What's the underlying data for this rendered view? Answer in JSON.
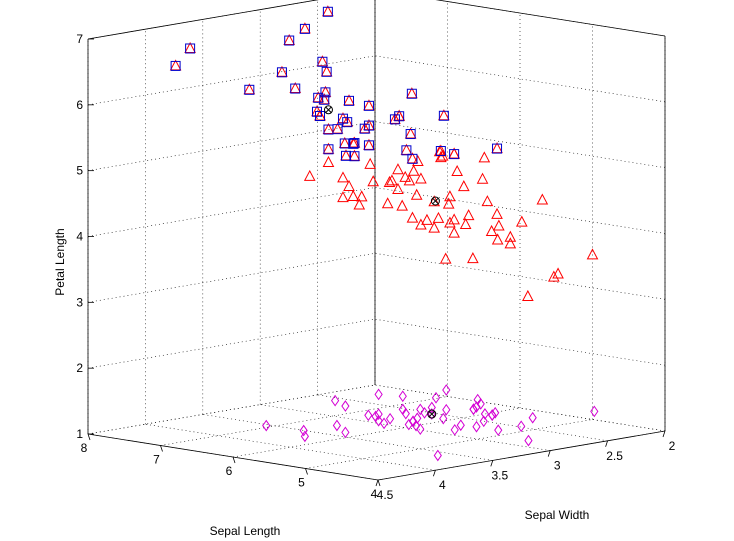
{
  "chart_data": {
    "type": "scatter",
    "title": "",
    "xlabel": "Sepal Length",
    "ylabel": "Sepal Width",
    "zlabel": "Petal Length",
    "xlim": [
      4,
      8
    ],
    "ylim": [
      2,
      4.5
    ],
    "zlim": [
      1,
      7
    ],
    "x_ticks": [
      "4",
      "5",
      "6",
      "7",
      "8"
    ],
    "y_ticks": [
      "2",
      "2.5",
      "3",
      "3.5",
      "4",
      "4.5"
    ],
    "z_ticks": [
      "1",
      "2",
      "3",
      "4",
      "5",
      "6",
      "7"
    ],
    "grid": true,
    "series": [
      {
        "marker": "diamond",
        "color": "#d400d4",
        "points": [
          [
            5.1,
            3.5,
            1.4
          ],
          [
            4.9,
            3.0,
            1.4
          ],
          [
            4.7,
            3.2,
            1.3
          ],
          [
            4.6,
            3.1,
            1.5
          ],
          [
            5.0,
            3.6,
            1.4
          ],
          [
            5.4,
            3.9,
            1.7
          ],
          [
            4.6,
            3.4,
            1.4
          ],
          [
            5.0,
            3.4,
            1.5
          ],
          [
            4.4,
            2.9,
            1.4
          ],
          [
            4.9,
            3.1,
            1.5
          ],
          [
            5.4,
            3.7,
            1.5
          ],
          [
            4.8,
            3.4,
            1.6
          ],
          [
            4.8,
            3.0,
            1.4
          ],
          [
            4.3,
            3.0,
            1.1
          ],
          [
            5.8,
            4.0,
            1.2
          ],
          [
            5.7,
            4.4,
            1.5
          ],
          [
            5.4,
            3.9,
            1.3
          ],
          [
            5.1,
            3.5,
            1.4
          ],
          [
            5.7,
            3.8,
            1.7
          ],
          [
            5.1,
            3.8,
            1.5
          ],
          [
            5.4,
            3.4,
            1.7
          ],
          [
            5.1,
            3.7,
            1.5
          ],
          [
            4.6,
            3.6,
            1.0
          ],
          [
            5.1,
            3.3,
            1.7
          ],
          [
            4.8,
            3.4,
            1.9
          ],
          [
            5.0,
            3.0,
            1.6
          ],
          [
            5.0,
            3.4,
            1.6
          ],
          [
            5.2,
            3.5,
            1.5
          ],
          [
            5.2,
            3.4,
            1.4
          ],
          [
            4.7,
            3.2,
            1.6
          ],
          [
            4.8,
            3.1,
            1.6
          ],
          [
            5.4,
            3.4,
            1.5
          ],
          [
            5.2,
            4.1,
            1.5
          ],
          [
            5.5,
            4.2,
            1.4
          ],
          [
            4.9,
            3.1,
            1.5
          ],
          [
            5.0,
            3.2,
            1.2
          ],
          [
            5.5,
            3.5,
            1.3
          ],
          [
            4.9,
            3.6,
            1.4
          ],
          [
            4.4,
            3.0,
            1.3
          ],
          [
            5.1,
            3.4,
            1.5
          ],
          [
            5.0,
            3.5,
            1.3
          ],
          [
            4.5,
            2.3,
            1.3
          ],
          [
            4.4,
            3.2,
            1.3
          ],
          [
            5.0,
            3.5,
            1.6
          ],
          [
            5.1,
            3.8,
            1.9
          ],
          [
            4.8,
            3.0,
            1.4
          ],
          [
            5.1,
            3.8,
            1.6
          ],
          [
            4.6,
            3.2,
            1.4
          ],
          [
            5.3,
            3.7,
            1.5
          ],
          [
            5.0,
            3.3,
            1.4
          ]
        ]
      },
      {
        "marker": "triangle",
        "color": "#ff0000",
        "points": [
          [
            7.0,
            3.2,
            4.7
          ],
          [
            6.4,
            3.2,
            4.5
          ],
          [
            6.9,
            3.1,
            4.9
          ],
          [
            5.5,
            2.3,
            4.0
          ],
          [
            6.5,
            2.8,
            4.6
          ],
          [
            5.7,
            2.8,
            4.5
          ],
          [
            6.3,
            3.3,
            4.7
          ],
          [
            4.9,
            2.4,
            3.3
          ],
          [
            6.6,
            2.9,
            4.6
          ],
          [
            5.2,
            2.7,
            3.9
          ],
          [
            5.0,
            2.0,
            3.5
          ],
          [
            5.9,
            3.0,
            4.2
          ],
          [
            6.0,
            2.2,
            4.0
          ],
          [
            6.1,
            2.9,
            4.7
          ],
          [
            5.6,
            2.9,
            3.6
          ],
          [
            6.7,
            3.1,
            4.4
          ],
          [
            5.6,
            3.0,
            4.5
          ],
          [
            5.8,
            2.7,
            4.1
          ],
          [
            6.2,
            2.2,
            4.5
          ],
          [
            5.6,
            2.5,
            3.9
          ],
          [
            5.9,
            3.2,
            4.8
          ],
          [
            6.1,
            2.8,
            4.0
          ],
          [
            6.3,
            2.5,
            4.9
          ],
          [
            6.1,
            2.8,
            4.7
          ],
          [
            6.4,
            2.9,
            4.3
          ],
          [
            6.6,
            3.0,
            4.4
          ],
          [
            6.8,
            2.8,
            4.8
          ],
          [
            6.7,
            3.0,
            5.0
          ],
          [
            6.0,
            2.9,
            4.5
          ],
          [
            5.7,
            2.6,
            3.5
          ],
          [
            5.5,
            2.4,
            3.8
          ],
          [
            5.5,
            2.4,
            3.7
          ],
          [
            5.8,
            2.7,
            3.9
          ],
          [
            6.0,
            2.7,
            5.1
          ],
          [
            5.4,
            3.0,
            4.5
          ],
          [
            6.0,
            3.4,
            4.5
          ],
          [
            6.7,
            3.1,
            4.7
          ],
          [
            6.3,
            2.3,
            4.4
          ],
          [
            5.6,
            3.0,
            4.1
          ],
          [
            5.5,
            2.5,
            4.0
          ],
          [
            5.5,
            2.6,
            4.4
          ],
          [
            6.1,
            3.0,
            4.6
          ],
          [
            5.8,
            2.6,
            4.0
          ],
          [
            5.0,
            2.3,
            3.3
          ],
          [
            5.6,
            2.7,
            4.2
          ],
          [
            5.7,
            3.0,
            4.2
          ],
          [
            5.7,
            2.9,
            4.2
          ],
          [
            6.2,
            2.9,
            4.3
          ],
          [
            5.1,
            2.5,
            3.0
          ],
          [
            5.7,
            2.8,
            4.1
          ],
          [
            6.3,
            3.3,
            6.0
          ],
          [
            5.8,
            2.7,
            5.1
          ],
          [
            7.1,
            3.0,
            5.9
          ],
          [
            6.3,
            2.9,
            5.6
          ],
          [
            6.5,
            3.0,
            5.8
          ],
          [
            7.6,
            3.0,
            6.6
          ],
          [
            4.9,
            2.5,
            4.5
          ],
          [
            7.3,
            2.9,
            6.3
          ],
          [
            6.7,
            2.5,
            5.8
          ],
          [
            7.2,
            3.6,
            6.1
          ],
          [
            6.5,
            3.2,
            5.1
          ],
          [
            6.4,
            2.7,
            5.3
          ],
          [
            6.8,
            3.0,
            5.5
          ],
          [
            5.7,
            2.5,
            5.0
          ],
          [
            5.8,
            2.8,
            5.1
          ],
          [
            6.4,
            3.2,
            5.3
          ],
          [
            6.5,
            3.0,
            5.5
          ],
          [
            7.7,
            3.8,
            6.7
          ],
          [
            7.7,
            2.6,
            6.9
          ],
          [
            6.0,
            2.2,
            5.0
          ],
          [
            6.9,
            3.2,
            5.7
          ],
          [
            5.6,
            2.8,
            4.9
          ],
          [
            7.7,
            2.8,
            6.7
          ],
          [
            6.3,
            2.7,
            4.9
          ],
          [
            6.7,
            3.3,
            5.7
          ],
          [
            7.2,
            3.2,
            6.0
          ],
          [
            6.2,
            2.8,
            4.8
          ],
          [
            6.1,
            3.0,
            4.9
          ],
          [
            6.4,
            2.8,
            5.6
          ],
          [
            7.2,
            3.0,
            5.8
          ],
          [
            7.4,
            2.8,
            6.1
          ],
          [
            7.9,
            3.8,
            6.4
          ],
          [
            6.4,
            2.8,
            5.6
          ],
          [
            6.3,
            2.8,
            5.1
          ],
          [
            6.1,
            2.6,
            5.6
          ],
          [
            7.7,
            3.0,
            6.1
          ],
          [
            6.3,
            3.4,
            5.6
          ],
          [
            6.4,
            3.1,
            5.5
          ],
          [
            6.0,
            3.0,
            4.8
          ],
          [
            6.9,
            3.1,
            5.4
          ],
          [
            6.7,
            3.1,
            5.6
          ],
          [
            6.9,
            3.1,
            5.1
          ],
          [
            5.8,
            2.7,
            5.1
          ],
          [
            6.8,
            3.2,
            5.9
          ],
          [
            6.7,
            3.3,
            5.7
          ],
          [
            6.7,
            3.0,
            5.2
          ],
          [
            6.3,
            2.5,
            5.0
          ],
          [
            6.5,
            3.0,
            5.2
          ],
          [
            6.2,
            3.4,
            5.4
          ],
          [
            5.9,
            3.0,
            5.1
          ]
        ]
      },
      {
        "marker": "square",
        "color": "#0000cc",
        "points": [
          [
            7.7,
            3.8,
            6.7
          ],
          [
            7.9,
            3.8,
            6.4
          ],
          [
            7.6,
            3.0,
            6.6
          ],
          [
            7.7,
            2.6,
            6.9
          ],
          [
            7.7,
            2.8,
            6.7
          ],
          [
            7.3,
            2.9,
            6.3
          ],
          [
            7.2,
            3.6,
            6.1
          ],
          [
            7.4,
            2.8,
            6.1
          ],
          [
            7.7,
            3.0,
            6.1
          ],
          [
            7.1,
            3.0,
            5.9
          ],
          [
            7.2,
            3.0,
            5.8
          ],
          [
            6.8,
            3.2,
            5.9
          ],
          [
            7.2,
            3.2,
            6.0
          ],
          [
            6.3,
            3.3,
            6.0
          ],
          [
            6.7,
            2.5,
            5.8
          ],
          [
            6.5,
            3.0,
            5.8
          ],
          [
            6.9,
            3.2,
            5.7
          ],
          [
            6.7,
            3.3,
            5.7
          ],
          [
            6.3,
            2.9,
            5.6
          ],
          [
            6.4,
            2.8,
            5.6
          ],
          [
            6.1,
            2.6,
            5.6
          ],
          [
            6.7,
            3.1,
            5.6
          ],
          [
            6.3,
            3.4,
            5.6
          ],
          [
            6.8,
            3.0,
            5.5
          ],
          [
            6.4,
            3.1,
            5.5
          ],
          [
            6.5,
            3.0,
            5.5
          ],
          [
            6.9,
            3.1,
            5.4
          ],
          [
            6.2,
            3.4,
            5.4
          ],
          [
            6.4,
            2.7,
            5.3
          ],
          [
            6.4,
            3.2,
            5.3
          ],
          [
            6.7,
            3.0,
            5.2
          ],
          [
            6.5,
            3.0,
            5.2
          ],
          [
            6.9,
            3.1,
            5.1
          ],
          [
            6.5,
            3.2,
            5.1
          ],
          [
            5.8,
            2.7,
            5.1
          ],
          [
            6.3,
            2.8,
            5.1
          ],
          [
            6.0,
            2.2,
            5.0
          ],
          [
            6.7,
            3.0,
            5.0
          ],
          [
            6.3,
            2.5,
            5.0
          ],
          [
            5.9,
            3.0,
            5.1
          ]
        ]
      },
      {
        "marker": "circle-x",
        "color": "#000000",
        "points": [
          [
            5.0,
            3.4,
            1.5
          ],
          [
            5.9,
            2.8,
            4.4
          ],
          [
            6.9,
            3.1,
            5.7
          ]
        ]
      }
    ]
  }
}
